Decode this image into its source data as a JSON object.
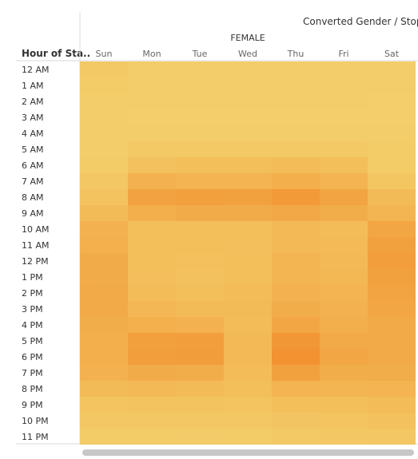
{
  "header": {
    "pane_title": "Converted Gender / Stop",
    "gender": "FEMALE",
    "row_field_label": "Hour of Sta.."
  },
  "chart_data": {
    "type": "heatmap",
    "title": "",
    "column_group": "FEMALE",
    "x": [
      "Sun",
      "Mon",
      "Tue",
      "Wed",
      "Thu",
      "Fri",
      "Sat"
    ],
    "y": [
      "12 AM",
      "1 AM",
      "2 AM",
      "3 AM",
      "4 AM",
      "5 AM",
      "6 AM",
      "7 AM",
      "8 AM",
      "9 AM",
      "10 AM",
      "11 AM",
      "12 PM",
      "1 PM",
      "2 PM",
      "3 PM",
      "4 PM",
      "5 PM",
      "6 PM",
      "7 PM",
      "8 PM",
      "9 PM",
      "10 PM",
      "11 PM"
    ],
    "values": [
      [
        0.1,
        0.04,
        0.04,
        0.04,
        0.04,
        0.04,
        0.04
      ],
      [
        0.06,
        0.04,
        0.04,
        0.04,
        0.04,
        0.04,
        0.04
      ],
      [
        0.04,
        0.04,
        0.04,
        0.04,
        0.04,
        0.04,
        0.03
      ],
      [
        0.04,
        0.03,
        0.03,
        0.03,
        0.03,
        0.03,
        0.03
      ],
      [
        0.04,
        0.04,
        0.04,
        0.04,
        0.04,
        0.04,
        0.04
      ],
      [
        0.04,
        0.1,
        0.1,
        0.1,
        0.1,
        0.1,
        0.06
      ],
      [
        0.06,
        0.22,
        0.26,
        0.26,
        0.3,
        0.26,
        0.08
      ],
      [
        0.14,
        0.45,
        0.42,
        0.42,
        0.5,
        0.42,
        0.15
      ],
      [
        0.2,
        0.68,
        0.72,
        0.7,
        0.82,
        0.66,
        0.32
      ],
      [
        0.32,
        0.5,
        0.55,
        0.55,
        0.6,
        0.52,
        0.4
      ],
      [
        0.45,
        0.26,
        0.26,
        0.26,
        0.35,
        0.3,
        0.62
      ],
      [
        0.48,
        0.26,
        0.26,
        0.25,
        0.35,
        0.33,
        0.7
      ],
      [
        0.55,
        0.26,
        0.24,
        0.26,
        0.4,
        0.35,
        0.75
      ],
      [
        0.55,
        0.27,
        0.23,
        0.26,
        0.4,
        0.38,
        0.7
      ],
      [
        0.58,
        0.3,
        0.26,
        0.3,
        0.45,
        0.42,
        0.66
      ],
      [
        0.56,
        0.36,
        0.32,
        0.32,
        0.52,
        0.45,
        0.62
      ],
      [
        0.52,
        0.48,
        0.46,
        0.3,
        0.62,
        0.5,
        0.58
      ],
      [
        0.5,
        0.72,
        0.74,
        0.34,
        0.85,
        0.58,
        0.58
      ],
      [
        0.5,
        0.75,
        0.76,
        0.34,
        0.92,
        0.62,
        0.56
      ],
      [
        0.45,
        0.55,
        0.52,
        0.3,
        0.7,
        0.52,
        0.52
      ],
      [
        0.32,
        0.35,
        0.32,
        0.26,
        0.42,
        0.4,
        0.42
      ],
      [
        0.18,
        0.2,
        0.2,
        0.18,
        0.26,
        0.26,
        0.3
      ],
      [
        0.12,
        0.13,
        0.12,
        0.12,
        0.16,
        0.18,
        0.22
      ],
      [
        0.08,
        0.08,
        0.07,
        0.08,
        0.1,
        0.12,
        0.14
      ]
    ],
    "color_scale": {
      "low": "#f3d06c",
      "high": "#f28d2c"
    },
    "grid": false,
    "legend": "none"
  }
}
